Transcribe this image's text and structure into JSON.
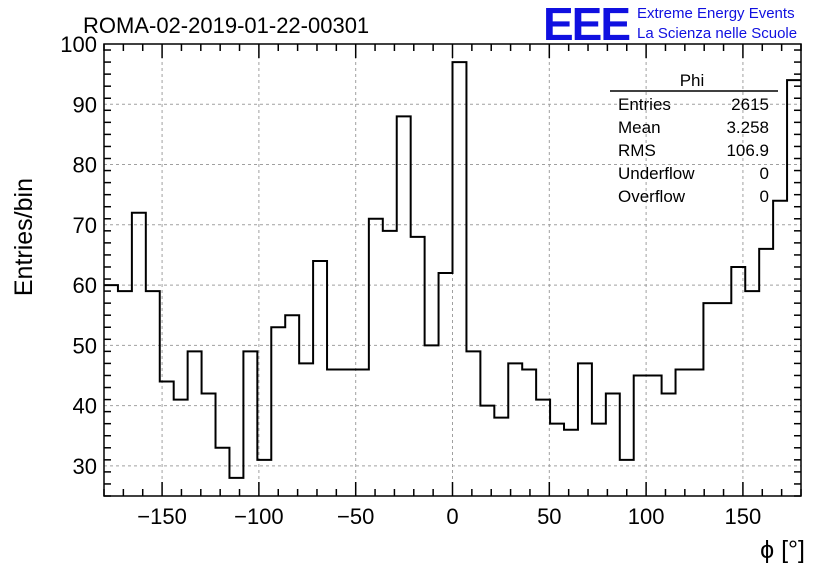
{
  "chart_data": {
    "type": "histogram",
    "title": "ROMA-02-2019-01-22-00301",
    "xlabel": "ϕ [°]",
    "ylabel": "Entries/bin",
    "xlim": [
      -180,
      180
    ],
    "ylim": [
      25,
      100
    ],
    "bin_width": 7.2,
    "x_ticks": [
      -150,
      -100,
      -50,
      0,
      50,
      100,
      150
    ],
    "x_tick_labels": [
      "−150",
      "−100",
      "−50",
      "0",
      "50",
      "100",
      "150"
    ],
    "y_ticks": [
      30,
      40,
      50,
      60,
      70,
      80,
      90,
      100
    ],
    "y_tick_labels": [
      "30",
      "40",
      "50",
      "60",
      "70",
      "80",
      "90",
      "100"
    ],
    "grid": true,
    "values": [
      60,
      59,
      72,
      59,
      44,
      41,
      49,
      42,
      33,
      28,
      49,
      31,
      53,
      55,
      47,
      64,
      46,
      46,
      46,
      71,
      69,
      88,
      68,
      50,
      62,
      97,
      49,
      40,
      38,
      47,
      46,
      41,
      37,
      36,
      47,
      37,
      42,
      31,
      45,
      45,
      42,
      46,
      46,
      57,
      57,
      63,
      59,
      66,
      74,
      94
    ]
  },
  "stats_box": {
    "title": "Phi",
    "rows": [
      {
        "label": "Entries",
        "value": "2615"
      },
      {
        "label": "Mean",
        "value": "3.258"
      },
      {
        "label": "RMS",
        "value": "106.9"
      },
      {
        "label": "Underflow",
        "value": "0"
      },
      {
        "label": "Overflow",
        "value": "0"
      }
    ]
  },
  "branding": {
    "logo": "EEE",
    "line1": "Extreme Energy Events",
    "line2": "La Scienza nelle Scuole"
  },
  "colors": {
    "logo": "#1010e0",
    "histogram": "#000000",
    "grid": "#a0a0a0"
  }
}
